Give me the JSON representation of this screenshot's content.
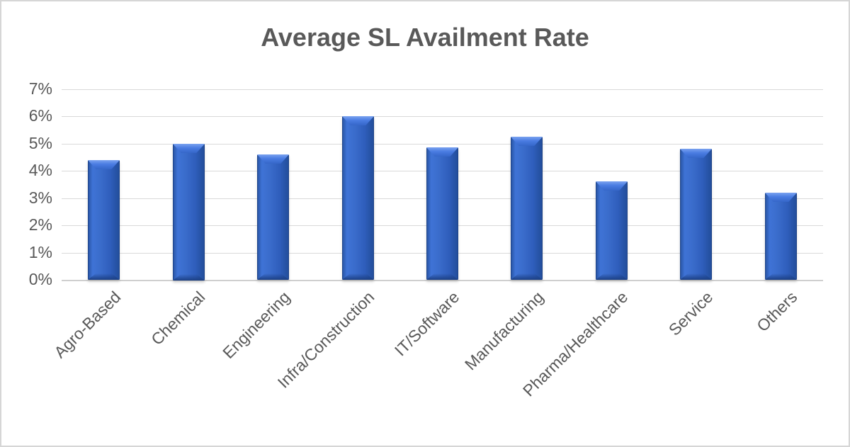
{
  "chart_data": {
    "type": "bar",
    "title": "Average SL Availment Rate",
    "categories": [
      "Agro-Based",
      "Chemical",
      "Engineering",
      "Infra/Construction",
      "IT/Software",
      "Manufacturing",
      "Pharma/Healthcare",
      "Service",
      "Others"
    ],
    "values": [
      4.4,
      5.0,
      4.6,
      6.0,
      4.85,
      5.25,
      3.6,
      4.8,
      3.2
    ],
    "unit": "%",
    "xlabel": "",
    "ylabel": "",
    "ylim": [
      0,
      7
    ],
    "ytick_labels": [
      "0%",
      "1%",
      "2%",
      "3%",
      "4%",
      "5%",
      "6%",
      "7%"
    ],
    "grid": true,
    "legend": "none",
    "colors": {
      "bar_body": "#3a6ccb",
      "bar_edge_dark": "#24509c",
      "bar_bevel_light": "#4a7ce2",
      "title_text": "#595959",
      "axis_text": "#595959",
      "gridline": "#d9d9d9",
      "background": "#ffffff"
    }
  }
}
